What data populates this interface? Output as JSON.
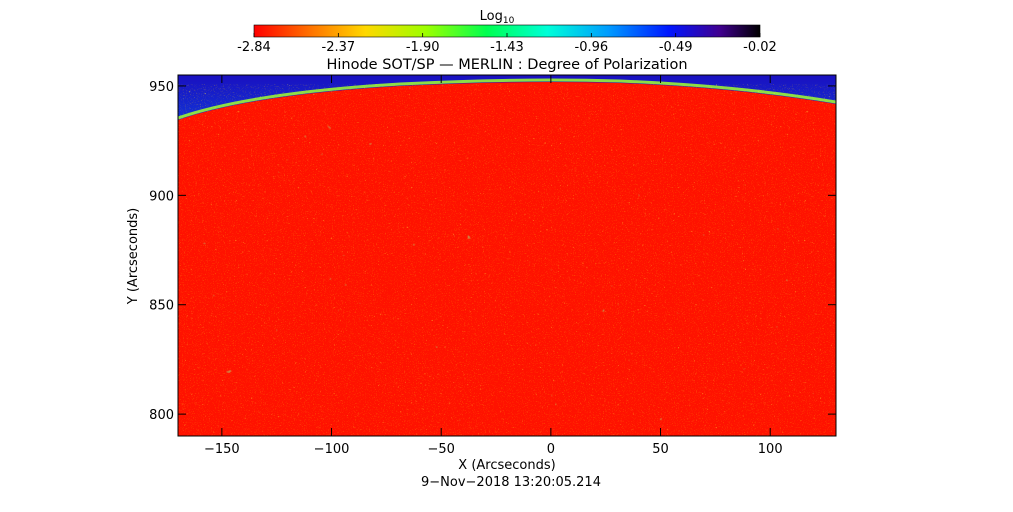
{
  "colorbar": {
    "label_main": "Log",
    "label_sub": "10",
    "tick_labels": [
      "-2.84",
      "-2.37",
      "-1.90",
      "-1.43",
      "-0.96",
      "-0.49",
      "-0.02"
    ],
    "range": [
      -2.84,
      -0.02
    ],
    "colormap": [
      "#ff0000",
      "#ff8000",
      "#ffd000",
      "#90ff00",
      "#00ff60",
      "#00ffd0",
      "#00a0ff",
      "#0020ff",
      "#4000a0",
      "#000000"
    ]
  },
  "title": "Hinode SOT/SP — MERLIN : Degree of Polarization",
  "axes": {
    "x_label": "X (Arcseconds)",
    "y_label": "Y (Arcseconds)",
    "x_range": [
      -170,
      130
    ],
    "y_range": [
      790,
      955
    ],
    "x_ticks": [
      -150,
      -100,
      -50,
      0,
      50,
      100
    ],
    "y_ticks": [
      800,
      850,
      900,
      950
    ],
    "x_tick_labels": [
      "−150",
      "−100",
      "−50",
      "0",
      "50",
      "100"
    ],
    "y_tick_labels": [
      "800",
      "850",
      "900",
      "950"
    ]
  },
  "image": {
    "description_colors": {
      "background_disk": "#ff1a00",
      "limb_band": "#30e8b0",
      "off_limb": "#1030d0"
    }
  },
  "timestamp": "9−Nov−2018 13:20:05.214"
}
